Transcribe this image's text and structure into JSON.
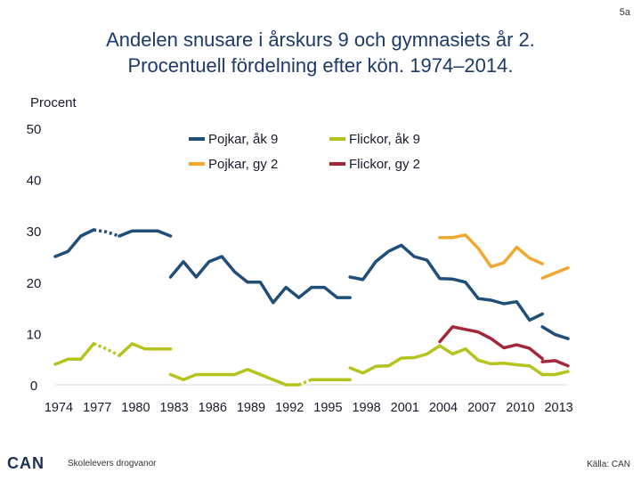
{
  "page_number": "5a",
  "title_line1": "Andelen snusare i årskurs 9 och gymnasiets år 2.",
  "title_line2": "Procentuell fördelning efter kön. 1974–2014.",
  "footer": {
    "logo": "CAN",
    "subtitle": "Skolelevers drogvanor",
    "source": "Källa: CAN"
  },
  "chart_data": {
    "type": "line",
    "ylabel": "Procent",
    "xlabel": "",
    "ylim": [
      0,
      50
    ],
    "xlim": [
      1974,
      2014
    ],
    "yticks": [
      0,
      10,
      20,
      30,
      40,
      50
    ],
    "xticks": [
      1974,
      1977,
      1980,
      1983,
      1986,
      1989,
      1992,
      1995,
      1998,
      2001,
      2004,
      2007,
      2010,
      2013
    ],
    "grid": false,
    "legend_position": "top",
    "series": [
      {
        "name": "Pojkar, åk 9",
        "color": "#1f4e79",
        "segments": [
          {
            "style": "solid",
            "points": [
              [
                1974,
                25
              ],
              [
                1975,
                26
              ],
              [
                1976,
                29
              ],
              [
                1977,
                30.2
              ]
            ]
          },
          {
            "style": "dotted",
            "points": [
              [
                1977,
                30.2
              ],
              [
                1978,
                29.8
              ],
              [
                1979,
                29
              ]
            ]
          },
          {
            "style": "solid",
            "points": [
              [
                1979,
                29
              ],
              [
                1980,
                30
              ],
              [
                1981,
                30
              ],
              [
                1982,
                30
              ],
              [
                1983,
                29
              ]
            ]
          },
          {
            "style": "solid",
            "points": [
              [
                1983,
                21
              ],
              [
                1984,
                24
              ],
              [
                1985,
                21
              ],
              [
                1986,
                24
              ],
              [
                1987,
                25
              ],
              [
                1988,
                22
              ],
              [
                1989,
                20
              ],
              [
                1990,
                20
              ],
              [
                1991,
                16
              ],
              [
                1992,
                19
              ],
              [
                1993,
                17
              ],
              [
                1994,
                19
              ],
              [
                1995,
                19
              ],
              [
                1996,
                17
              ],
              [
                1997,
                17
              ]
            ]
          },
          {
            "style": "solid",
            "points": [
              [
                1997,
                21
              ],
              [
                1998,
                20.5
              ],
              [
                1999,
                24
              ],
              [
                2000,
                26
              ],
              [
                2001,
                27.2
              ],
              [
                2002,
                25
              ],
              [
                2003,
                24.3
              ],
              [
                2004,
                20.7
              ],
              [
                2005,
                20.6
              ],
              [
                2006,
                20
              ],
              [
                2007,
                16.8
              ],
              [
                2008,
                16.5
              ],
              [
                2009,
                15.8
              ],
              [
                2010,
                16.2
              ],
              [
                2011,
                12.6
              ],
              [
                2012,
                13.8
              ]
            ]
          },
          {
            "style": "solid",
            "points": [
              [
                2012,
                11.3
              ],
              [
                2013,
                9.8
              ],
              [
                2014,
                9
              ]
            ]
          }
        ]
      },
      {
        "name": "Flickor, åk 9",
        "color": "#b5c31e",
        "segments": [
          {
            "style": "solid",
            "points": [
              [
                1974,
                4
              ],
              [
                1975,
                5
              ],
              [
                1976,
                5
              ],
              [
                1977,
                8
              ]
            ]
          },
          {
            "style": "dotted",
            "points": [
              [
                1977,
                8
              ],
              [
                1978,
                7
              ],
              [
                1979,
                5.7
              ]
            ]
          },
          {
            "style": "solid",
            "points": [
              [
                1979,
                5.7
              ],
              [
                1980,
                8
              ],
              [
                1981,
                7
              ],
              [
                1982,
                7
              ],
              [
                1983,
                7
              ]
            ]
          },
          {
            "style": "solid",
            "points": [
              [
                1983,
                2
              ],
              [
                1984,
                1
              ],
              [
                1985,
                2
              ],
              [
                1986,
                2
              ],
              [
                1987,
                2
              ],
              [
                1988,
                2
              ],
              [
                1989,
                3
              ],
              [
                1990,
                2
              ],
              [
                1991,
                1
              ],
              [
                1992,
                0
              ],
              [
                1993,
                0
              ]
            ]
          },
          {
            "style": "dotted",
            "points": [
              [
                1993,
                0
              ],
              [
                1994,
                1
              ]
            ]
          },
          {
            "style": "solid",
            "points": [
              [
                1994,
                1
              ],
              [
                1995,
                1
              ],
              [
                1996,
                1
              ],
              [
                1997,
                1
              ]
            ]
          },
          {
            "style": "solid",
            "points": [
              [
                1997,
                3.3
              ],
              [
                1998,
                2.3
              ],
              [
                1999,
                3.6
              ],
              [
                2000,
                3.7
              ],
              [
                2001,
                5.2
              ],
              [
                2002,
                5.3
              ],
              [
                2003,
                6
              ],
              [
                2004,
                7.6
              ],
              [
                2005,
                6
              ],
              [
                2006,
                7
              ],
              [
                2007,
                4.8
              ],
              [
                2008,
                4.1
              ],
              [
                2009,
                4.2
              ],
              [
                2010,
                3.9
              ],
              [
                2011,
                3.7
              ],
              [
                2012,
                2
              ]
            ]
          },
          {
            "style": "solid",
            "points": [
              [
                2012,
                2
              ],
              [
                2013,
                2
              ],
              [
                2014,
                2.6
              ]
            ]
          }
        ]
      },
      {
        "name": "Pojkar, gy 2",
        "color": "#f0a830",
        "segments": [
          {
            "style": "solid",
            "points": [
              [
                2004,
                28.7
              ],
              [
                2005,
                28.7
              ],
              [
                2006,
                29.2
              ],
              [
                2007,
                26.6
              ],
              [
                2008,
                23
              ],
              [
                2009,
                23.8
              ],
              [
                2010,
                26.8
              ],
              [
                2011,
                24.7
              ],
              [
                2012,
                23.6
              ]
            ]
          },
          {
            "style": "solid",
            "points": [
              [
                2012,
                20.8
              ],
              [
                2013,
                21.8
              ],
              [
                2014,
                22.8
              ]
            ]
          }
        ]
      },
      {
        "name": "Flickor, gy 2",
        "color": "#a3283a",
        "segments": [
          {
            "style": "solid",
            "points": [
              [
                2004,
                8.4
              ],
              [
                2005,
                11.3
              ],
              [
                2006,
                10.8
              ],
              [
                2007,
                10.3
              ],
              [
                2008,
                9
              ],
              [
                2009,
                7.2
              ],
              [
                2010,
                7.8
              ],
              [
                2011,
                7.1
              ],
              [
                2012,
                5.1
              ]
            ]
          },
          {
            "style": "solid",
            "points": [
              [
                2012,
                4.5
              ],
              [
                2013,
                4.7
              ],
              [
                2014,
                3.7
              ]
            ]
          }
        ]
      }
    ]
  }
}
